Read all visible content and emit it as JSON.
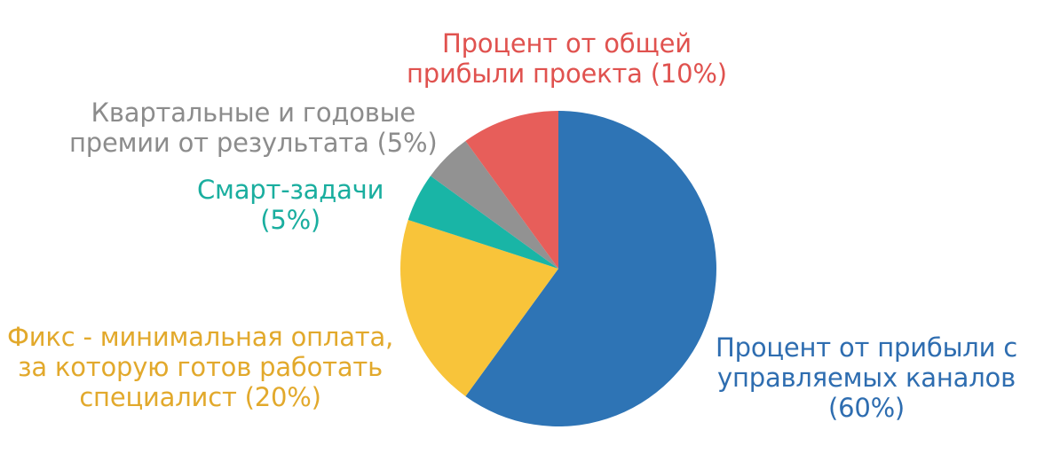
{
  "chart_data": {
    "type": "pie",
    "slices": [
      {
        "key": "channels",
        "label": [
          "Процент от прибыли с",
          "управляемых каналов",
          "(60%)"
        ],
        "value": 60,
        "color": "#2E74B5"
      },
      {
        "key": "fix",
        "label": [
          "Фикс -  минимальная оплата,",
          "за которую  готов работать",
          "специалист (20%)"
        ],
        "value": 20,
        "color": "#F8C43A"
      },
      {
        "key": "smart",
        "label": [
          "Смарт-задачи",
          "(5%)"
        ],
        "value": 5,
        "color": "#19B5A6"
      },
      {
        "key": "bonus",
        "label": [
          "Квартальные и годовые",
          "премии от результата (5%)"
        ],
        "value": 5,
        "color": "#929292"
      },
      {
        "key": "project",
        "label": [
          "Процент от общей",
          "прибыли проекта (10%)"
        ],
        "value": 10,
        "color": "#E75E5A"
      }
    ],
    "label_colors": {
      "channels": "#2E6DB0",
      "fix": "#E2A92C",
      "smart": "#1AAE9F",
      "bonus": "#8C8C8C",
      "project": "#E0524F"
    }
  }
}
